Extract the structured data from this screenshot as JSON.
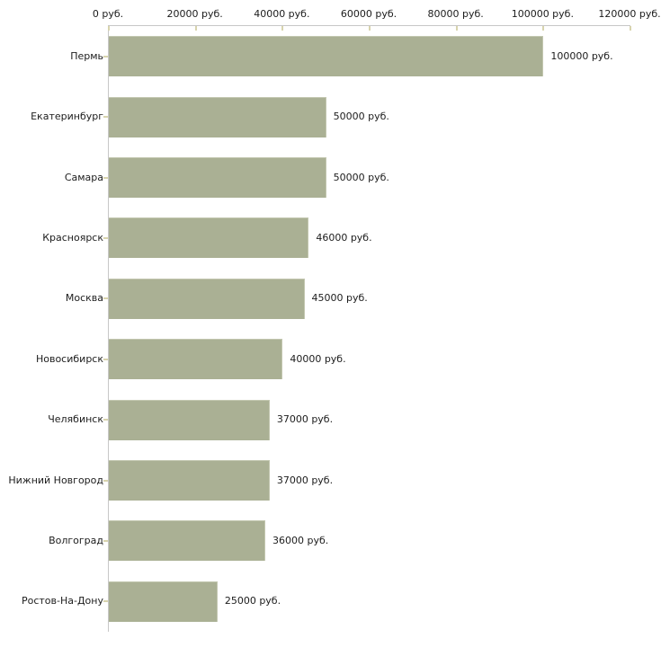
{
  "chart_data": {
    "type": "bar",
    "orientation": "horizontal",
    "title": "",
    "categories": [
      "Пермь",
      "Екатеринбург",
      "Самара",
      "Красноярск",
      "Москва",
      "Новосибирск",
      "Челябинск",
      "Нижний Новгород",
      "Волгоград",
      "Ростов-На-Дону"
    ],
    "values": [
      100000,
      50000,
      50000,
      46000,
      45000,
      40000,
      37000,
      37000,
      36000,
      25000
    ],
    "value_labels": [
      "100000 руб.",
      "50000 руб.",
      "50000 руб.",
      "46000 руб.",
      "45000 руб.",
      "40000 руб.",
      "37000 руб.",
      "37000 руб.",
      "36000 руб.",
      "25000 руб."
    ],
    "x_ticks": [
      0,
      20000,
      40000,
      60000,
      80000,
      100000,
      120000
    ],
    "x_tick_labels": [
      "0 руб.",
      "20000 руб.",
      "40000 руб.",
      "60000 руб.",
      "80000 руб.",
      "100000 руб.",
      "120000 руб."
    ],
    "xlim": [
      0,
      120000
    ],
    "unit": "руб.",
    "grid": false,
    "legend_position": "none",
    "colors": {
      "bar_fill": "#aab094",
      "bar_highlight": "#c3c7b0",
      "axis_line": "#c7c7c7",
      "tick_mark": "#d8d4ae",
      "label_text": "#1c1c1c"
    }
  }
}
